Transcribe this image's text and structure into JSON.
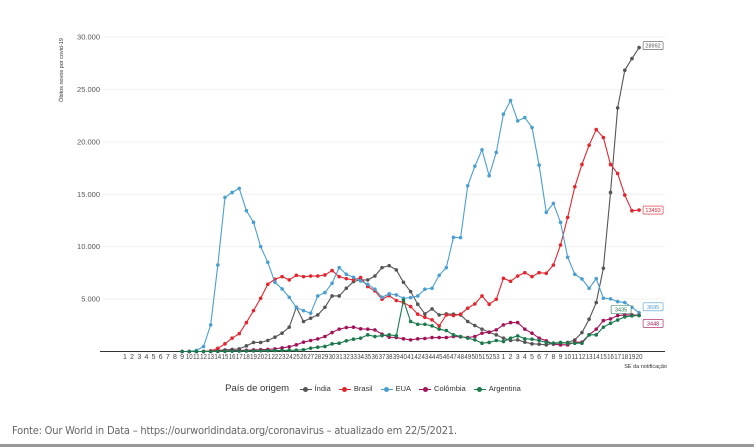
{
  "chart_data": {
    "type": "line",
    "title": "",
    "xlabel": "SE da notificação",
    "ylabel": "Óbitos novos por covid-19",
    "ylim": [
      0,
      30000
    ],
    "yticks": [
      "5.000",
      "10.000",
      "15.000",
      "20.000",
      "25.000",
      "30.000"
    ],
    "ytick_values": [
      5000,
      10000,
      15000,
      20000,
      25000,
      30000
    ],
    "grid": true,
    "legend_title": "País de origem",
    "legend_position": "bottom",
    "x_labels": [
      "1",
      "2",
      "3",
      "4",
      "5",
      "6",
      "7",
      "8",
      "9",
      "10",
      "11",
      "12",
      "13",
      "14",
      "15",
      "16",
      "17",
      "18",
      "19",
      "20",
      "21",
      "22",
      "23",
      "24",
      "25",
      "26",
      "27",
      "28",
      "29",
      "30",
      "31",
      "32",
      "33",
      "34",
      "35",
      "36",
      "37",
      "38",
      "39",
      "40",
      "41",
      "42",
      "43",
      "44",
      "45",
      "46",
      "47",
      "48",
      "49",
      "50",
      "51",
      "52",
      "53",
      "1",
      "2",
      "3",
      "4",
      "5",
      "6",
      "7",
      "8",
      "9",
      "10",
      "11",
      "12",
      "13",
      "14",
      "15",
      "16",
      "17",
      "18",
      "19",
      "20"
    ],
    "data_start_label_index": 8,
    "series": [
      {
        "name": "Índia",
        "color": "#555555",
        "end_label": "28992",
        "values": [
          0,
          0,
          0,
          0,
          50,
          100,
          150,
          200,
          250,
          540,
          860,
          860,
          1050,
          1370,
          1750,
          2320,
          4220,
          2860,
          3180,
          3490,
          4220,
          5300,
          5300,
          6030,
          6670,
          6830,
          6830,
          7200,
          8000,
          8190,
          7780,
          6600,
          5720,
          4510,
          3590,
          4060,
          3490,
          3590,
          3560,
          3490,
          2860,
          2480,
          2130,
          1840,
          1590,
          1270,
          1050,
          1110,
          890,
          730,
          700,
          635,
          790,
          790,
          860,
          1110,
          1810,
          3080,
          4670,
          7940,
          15170,
          23240,
          26830,
          27940,
          28992
        ]
      },
      {
        "name": "Brasil",
        "color": "#e0262e",
        "end_label": "13493",
        "values": [
          0,
          0,
          0,
          0,
          50,
          300,
          730,
          1270,
          1700,
          2760,
          3900,
          5080,
          6410,
          6890,
          7140,
          6830,
          7270,
          7140,
          7200,
          7200,
          7300,
          7720,
          7140,
          6950,
          6830,
          7050,
          6190,
          5780,
          4980,
          5330,
          4860,
          4670,
          4290,
          3560,
          3270,
          3020,
          2440,
          3490,
          3430,
          3560,
          4130,
          4540,
          5300,
          4510,
          4980,
          6980,
          6700,
          7200,
          7520,
          7140,
          7520,
          7460,
          8250,
          10160,
          12790,
          15710,
          17840,
          19680,
          21170,
          20410,
          17840,
          16980,
          14920,
          13430,
          13493
        ]
      },
      {
        "name": "EUA",
        "color": "#4a9fd0",
        "end_label": "3695",
        "values": [
          0,
          0,
          100,
          476,
          2540,
          8250,
          14700,
          15170,
          15560,
          13430,
          12320,
          10000,
          8510,
          6600,
          5970,
          5175,
          4190,
          3900,
          3650,
          5300,
          5620,
          6510,
          8000,
          7370,
          7080,
          6730,
          6410,
          5940,
          5175,
          5500,
          5400,
          5080,
          5140,
          5300,
          5940,
          6030,
          7270,
          8000,
          10890,
          10860,
          15810,
          17680,
          19240,
          16760,
          18990,
          22640,
          23940,
          22000,
          22320,
          21370,
          17780,
          13270,
          14130,
          12320,
          8990,
          7370,
          6920,
          6030,
          6950,
          5080,
          5020,
          4760,
          4670,
          4220,
          3695
        ]
      },
      {
        "name": "Colômbia",
        "color": "#a3135a",
        "end_label": "3448",
        "values": [
          0,
          0,
          0,
          0,
          0,
          20,
          50,
          80,
          100,
          120,
          150,
          180,
          200,
          250,
          350,
          450,
          640,
          890,
          1050,
          1200,
          1430,
          1810,
          2130,
          2290,
          2320,
          2160,
          2130,
          2060,
          1650,
          1370,
          1330,
          1210,
          1110,
          1210,
          1240,
          1330,
          1330,
          1330,
          1430,
          1400,
          1330,
          1430,
          1750,
          1840,
          2060,
          2540,
          2760,
          2760,
          2130,
          1750,
          1270,
          1020,
          700,
          635,
          635,
          890,
          890,
          1590,
          2130,
          2950,
          3110,
          3430,
          3490,
          3490,
          3448
        ]
      },
      {
        "name": "Argentina",
        "color": "#1a7a4c",
        "end_label": "3435",
        "values": [
          0,
          0,
          0,
          0,
          0,
          0,
          20,
          30,
          40,
          50,
          60,
          70,
          80,
          90,
          100,
          110,
          130,
          160,
          320,
          410,
          480,
          730,
          790,
          1020,
          1170,
          1270,
          1590,
          1430,
          1520,
          1590,
          1500,
          4900,
          2860,
          2600,
          2600,
          2440,
          2130,
          2000,
          1590,
          1430,
          1270,
          1110,
          790,
          860,
          1050,
          950,
          1270,
          1490,
          1210,
          1170,
          1050,
          860,
          790,
          860,
          790,
          790,
          790,
          1590,
          1590,
          2320,
          2700,
          3000,
          3300,
          3400,
          3435
        ]
      }
    ]
  },
  "footer": {
    "source": "Fonte: Our World in Data – https://ourworldindata.org/coronavirus – atualizado em 22/5/2021."
  }
}
